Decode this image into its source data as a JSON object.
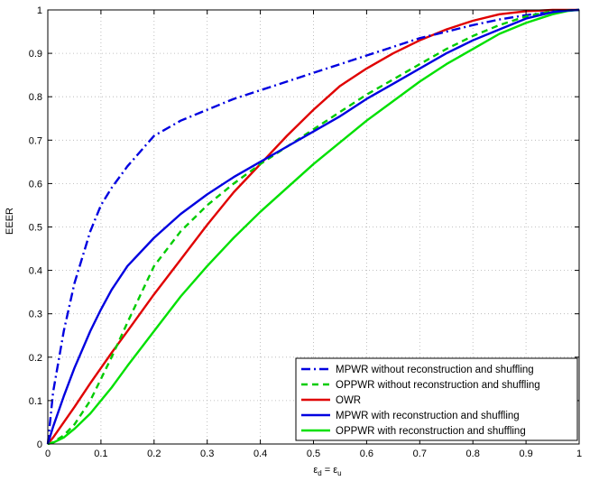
{
  "chart_data": {
    "type": "line",
    "title": "",
    "xlabel_main": "ε",
    "xlabel_sub1": "d",
    "xlabel_eq": " = ε",
    "xlabel_sub2": "u",
    "ylabel": "EEER",
    "xlim": [
      0,
      1
    ],
    "ylim": [
      0,
      1
    ],
    "xticks": [
      "0",
      "0.1",
      "0.2",
      "0.3",
      "0.4",
      "0.5",
      "0.6",
      "0.7",
      "0.8",
      "0.9",
      "1"
    ],
    "yticks": [
      "0",
      "0.1",
      "0.2",
      "0.3",
      "0.4",
      "0.5",
      "0.6",
      "0.7",
      "0.8",
      "0.9",
      "1"
    ],
    "grid": true,
    "legend_position": "bottom-right",
    "x": [
      0,
      0.01,
      0.03,
      0.05,
      0.08,
      0.1,
      0.12,
      0.15,
      0.2,
      0.25,
      0.3,
      0.35,
      0.4,
      0.45,
      0.5,
      0.55,
      0.6,
      0.65,
      0.7,
      0.75,
      0.8,
      0.85,
      0.9,
      0.95,
      0.98,
      1.0
    ],
    "series": [
      {
        "name": "MPWR without reconstruction and shuffling",
        "color": "#0000e0",
        "style": "dashdot",
        "values": [
          0,
          0.12,
          0.26,
          0.37,
          0.49,
          0.55,
          0.59,
          0.64,
          0.71,
          0.745,
          0.77,
          0.795,
          0.815,
          0.835,
          0.855,
          0.875,
          0.895,
          0.915,
          0.935,
          0.95,
          0.965,
          0.978,
          0.988,
          0.996,
          0.999,
          1.0
        ]
      },
      {
        "name": "OPPWR without reconstruction and shuffling",
        "color": "#00cc00",
        "style": "dashed",
        "values": [
          0,
          0.004,
          0.02,
          0.045,
          0.1,
          0.15,
          0.2,
          0.28,
          0.41,
          0.49,
          0.55,
          0.6,
          0.645,
          0.685,
          0.725,
          0.765,
          0.805,
          0.84,
          0.875,
          0.91,
          0.94,
          0.965,
          0.985,
          0.997,
          0.999,
          1.0
        ]
      },
      {
        "name": "OWR",
        "color": "#e00000",
        "style": "solid",
        "values": [
          0,
          0.015,
          0.05,
          0.085,
          0.14,
          0.175,
          0.21,
          0.26,
          0.345,
          0.425,
          0.505,
          0.58,
          0.645,
          0.71,
          0.77,
          0.825,
          0.865,
          0.9,
          0.93,
          0.955,
          0.975,
          0.99,
          0.997,
          1.0,
          1.0,
          1.0
        ]
      },
      {
        "name": "MPWR with reconstruction and shuffling",
        "color": "#0000e0",
        "style": "solid",
        "values": [
          0,
          0.04,
          0.11,
          0.175,
          0.26,
          0.31,
          0.355,
          0.41,
          0.475,
          0.53,
          0.575,
          0.615,
          0.65,
          0.685,
          0.72,
          0.755,
          0.795,
          0.83,
          0.865,
          0.9,
          0.93,
          0.955,
          0.98,
          0.995,
          0.999,
          1.0
        ]
      },
      {
        "name": "OPPWR with reconstruction and shuffling",
        "color": "#00e000",
        "style": "solid",
        "values": [
          0,
          0.003,
          0.015,
          0.035,
          0.07,
          0.1,
          0.13,
          0.18,
          0.26,
          0.34,
          0.41,
          0.475,
          0.535,
          0.59,
          0.645,
          0.695,
          0.745,
          0.79,
          0.835,
          0.875,
          0.91,
          0.945,
          0.97,
          0.99,
          0.998,
          1.0
        ]
      }
    ]
  }
}
